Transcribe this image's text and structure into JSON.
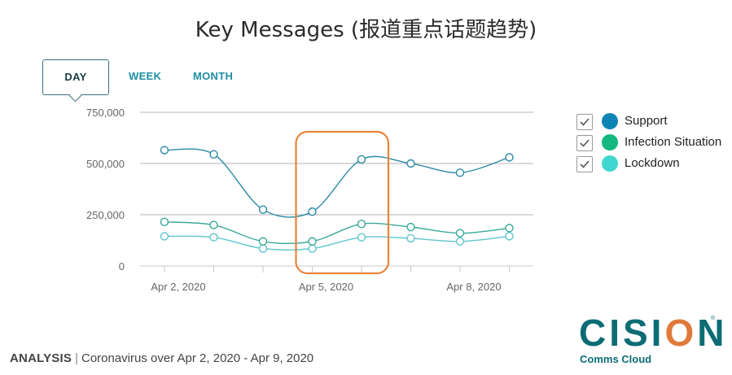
{
  "title": "Key Messages (报道重点话题趋势)",
  "tabs": [
    {
      "label": "DAY",
      "active": true
    },
    {
      "label": "WEEK",
      "active": false
    },
    {
      "label": "MONTH",
      "active": false
    }
  ],
  "chart_data": {
    "type": "line",
    "title": "Key Messages (报道重点话题趋势)",
    "x": [
      "Apr 2, 2020",
      "Apr 3, 2020",
      "Apr 4, 2020",
      "Apr 5, 2020",
      "Apr 6, 2020",
      "Apr 7, 2020",
      "Apr 8, 2020",
      "Apr 9, 2020"
    ],
    "x_tick_labels": [
      "Apr 2, 2020",
      "Apr 5, 2020",
      "Apr 8, 2020"
    ],
    "y_tick_labels": [
      "0",
      "250,000",
      "500,000",
      "750,000"
    ],
    "ylim": [
      0,
      750000
    ],
    "grid": true,
    "series": [
      {
        "name": "Support",
        "color": "#2a8aa6",
        "values": [
          565000,
          545000,
          275000,
          265000,
          520000,
          500000,
          455000,
          530000
        ]
      },
      {
        "name": "Infection Situation",
        "color": "#3aa99a",
        "values": [
          215000,
          200000,
          120000,
          120000,
          205000,
          190000,
          160000,
          185000
        ]
      },
      {
        "name": "Lockdown",
        "color": "#5fc6cc",
        "values": [
          145000,
          140000,
          85000,
          85000,
          140000,
          135000,
          120000,
          145000
        ]
      }
    ],
    "highlight": {
      "from_index": 3,
      "to_index": 4,
      "color": "#e8843a"
    },
    "legend_position": "right"
  },
  "legend": [
    {
      "label": "Support",
      "color": "#0e84b6"
    },
    {
      "label": "Infection Situation",
      "color": "#12b880"
    },
    {
      "label": "Lockdown",
      "color": "#3fd6d0"
    }
  ],
  "footer": {
    "bold": "ANALYSIS",
    "separator": "|",
    "text": "Coronavirus over Apr 2, 2020 - Apr 9, 2020"
  },
  "logo": {
    "main_part1": "CISI",
    "main_part2": "O",
    "main_part3": "N",
    "sub": "Comms Cloud",
    "reg": "®"
  }
}
